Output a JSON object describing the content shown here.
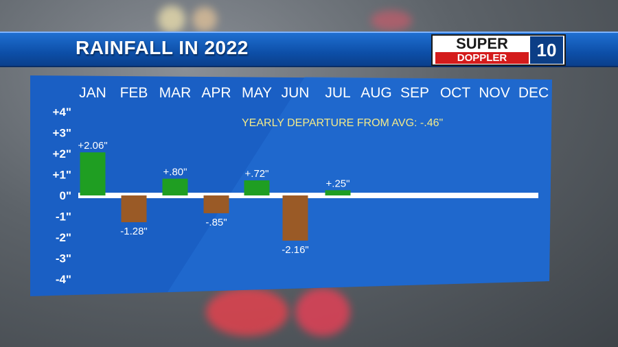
{
  "header": {
    "title": "RAINFALL IN 2022",
    "logo": {
      "line1": "SUPER",
      "line2": "DOPPLER",
      "badge": "10"
    }
  },
  "colors": {
    "panel": "#1a5fc4",
    "positive": "#1f9e22",
    "negative": "#9a5a26",
    "annotation": "#f3ea8a",
    "zero_line": "#ffffff"
  },
  "chart_data": {
    "type": "bar",
    "title": "RAINFALL IN 2022",
    "categories": [
      "JAN",
      "FEB",
      "MAR",
      "APR",
      "MAY",
      "JUN",
      "JUL",
      "AUG",
      "SEP",
      "OCT",
      "NOV",
      "DEC"
    ],
    "values": [
      2.06,
      -1.28,
      0.8,
      -0.85,
      0.72,
      -2.16,
      0.25,
      null,
      null,
      null,
      null,
      null
    ],
    "value_labels": [
      "+2.06\"",
      "-1.28\"",
      "+.80\"",
      "-.85\"",
      "+.72\"",
      "-2.16\"",
      "+.25\"",
      "",
      "",
      "",
      "",
      ""
    ],
    "y_ticks": [
      4,
      3,
      2,
      1,
      0,
      -1,
      -2,
      -3,
      -4
    ],
    "y_tick_labels": [
      "+4\"",
      "+3\"",
      "+2\"",
      "+1\"",
      "0\"",
      "-1\"",
      "-2\"",
      "-3\"",
      "-4\""
    ],
    "ylim": [
      -4,
      4
    ],
    "annotation": "YEARLY DEPARTURE FROM AVG: -.46\"",
    "grid": false,
    "legend": "none"
  }
}
